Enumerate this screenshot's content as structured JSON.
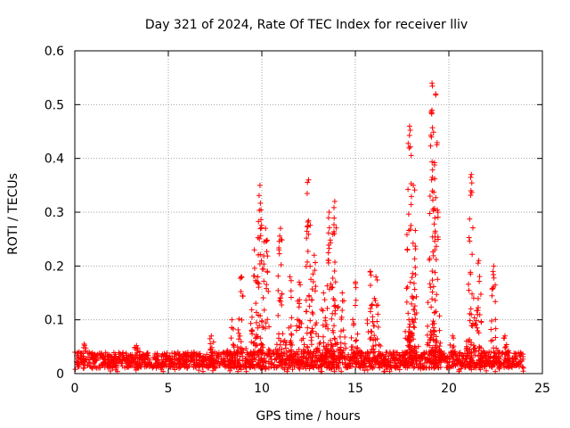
{
  "chart_data": {
    "type": "scatter",
    "title": "Day 321 of 2024, Rate Of TEC Index for receiver lliv",
    "xlabel": "GPS time / hours",
    "ylabel": "ROTI / TECUs",
    "xlim": [
      0,
      25
    ],
    "ylim": [
      0,
      0.6
    ],
    "xticks": [
      0,
      5,
      10,
      15,
      20,
      25
    ],
    "xtick_labels": [
      "0",
      "5",
      "10",
      "15",
      "20",
      "25"
    ],
    "yticks": [
      0,
      0.1,
      0.2,
      0.3,
      0.4,
      0.5,
      0.6
    ],
    "ytick_labels": [
      "0",
      "0.1",
      "0.2",
      "0.3",
      "0.4",
      "0.5",
      "0.6"
    ],
    "grid": true,
    "marker": "+",
    "color": "#ff0000",
    "series": [
      {
        "name": "ROTI",
        "baseline": {
          "x_range": [
            0,
            24
          ],
          "typical_range": [
            0.01,
            0.04
          ],
          "note": "dense band of points across the day"
        },
        "notable_peaks": [
          {
            "x": 0.5,
            "y": 0.055
          },
          {
            "x": 3.3,
            "y": 0.052
          },
          {
            "x": 7.3,
            "y": 0.07
          },
          {
            "x": 8.4,
            "y": 0.1
          },
          {
            "x": 8.9,
            "y": 0.18
          },
          {
            "x": 9.6,
            "y": 0.23
          },
          {
            "x": 9.9,
            "y": 0.35
          },
          {
            "x": 10.2,
            "y": 0.27
          },
          {
            "x": 11.0,
            "y": 0.27
          },
          {
            "x": 11.5,
            "y": 0.18
          },
          {
            "x": 12.0,
            "y": 0.17
          },
          {
            "x": 12.5,
            "y": 0.36
          },
          {
            "x": 12.8,
            "y": 0.22
          },
          {
            "x": 13.3,
            "y": 0.15
          },
          {
            "x": 13.6,
            "y": 0.3
          },
          {
            "x": 13.9,
            "y": 0.32
          },
          {
            "x": 14.3,
            "y": 0.15
          },
          {
            "x": 15.0,
            "y": 0.17
          },
          {
            "x": 15.8,
            "y": 0.19
          },
          {
            "x": 16.1,
            "y": 0.18
          },
          {
            "x": 17.9,
            "y": 0.46
          },
          {
            "x": 18.1,
            "y": 0.35
          },
          {
            "x": 19.1,
            "y": 0.54
          },
          {
            "x": 19.3,
            "y": 0.52
          },
          {
            "x": 20.2,
            "y": 0.07
          },
          {
            "x": 21.2,
            "y": 0.37
          },
          {
            "x": 21.6,
            "y": 0.21
          },
          {
            "x": 22.4,
            "y": 0.2
          },
          {
            "x": 23.0,
            "y": 0.07
          }
        ]
      }
    ]
  }
}
